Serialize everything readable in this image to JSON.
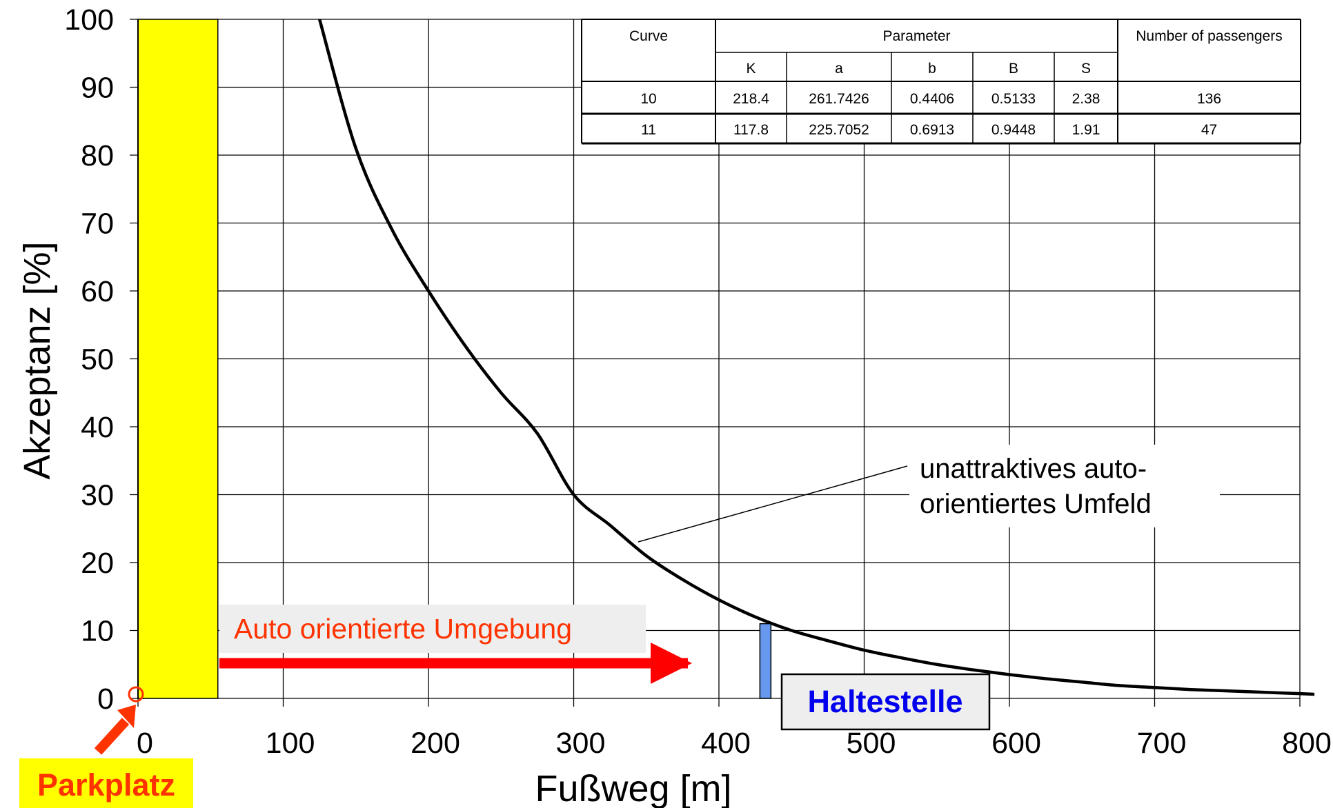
{
  "chart_data": {
    "type": "line",
    "xlabel": "Fußweg [m]",
    "ylabel": "Akzeptanz [%]",
    "xlim": [
      0,
      800
    ],
    "ylim": [
      0,
      100
    ],
    "xticks": [
      0,
      100,
      200,
      300,
      400,
      500,
      600,
      700,
      800
    ],
    "yticks": [
      0,
      10,
      20,
      30,
      40,
      50,
      60,
      70,
      80,
      90,
      100
    ],
    "grid": true,
    "series": [
      {
        "x": [
          125,
          150,
          175,
          200,
          225,
          250,
          275,
          300,
          325,
          350,
          375,
          400,
          425,
          450,
          475,
          500,
          525,
          550,
          575,
          600,
          625,
          650,
          675,
          700,
          725,
          750,
          775,
          800,
          810
        ],
        "y": [
          100,
          81,
          69,
          60,
          52,
          45,
          39,
          30,
          25.5,
          21,
          17.5,
          14.5,
          12,
          10,
          8.5,
          7.1,
          6,
          5,
          4.2,
          3.5,
          2.9,
          2.4,
          1.9,
          1.6,
          1.3,
          1.1,
          0.9,
          0.7,
          0.6
        ],
        "color": "#000000"
      }
    ],
    "parking_zone": {
      "x_from": 0,
      "x_to": 55,
      "color": "#ffff00"
    },
    "bus_stop_marker": {
      "x": 432,
      "y_top": 11,
      "color": "#6699ee"
    },
    "annotations": {
      "environment_label": "Auto orientierte Umgebung",
      "curve_label_line1": "unattraktives auto-",
      "curve_label_line2": "orientiertes Umfeld",
      "stop_label": "Haltestelle",
      "parking_label": "Parkplatz"
    },
    "table": {
      "headers": {
        "curve": "Curve",
        "parameter": "Parameter",
        "passengers": "Number of passengers"
      },
      "param_names": [
        "K",
        "a",
        "b",
        "B",
        "S"
      ],
      "rows": [
        {
          "curve": "10",
          "params": [
            "218.4",
            "261.7426",
            "0.4406",
            "0.5133",
            "2.38"
          ],
          "passengers": "136"
        },
        {
          "curve": "11",
          "params": [
            "117.8",
            "225.7052",
            "0.6913",
            "0.9448",
            "1.91"
          ],
          "passengers": "47"
        }
      ]
    }
  },
  "colors": {
    "arrow": "#ff0000",
    "arrow_label_text": "#ff3300",
    "parking_label_text": "#ff3300",
    "parking_label_bg": "#ffff00",
    "stop_label_text": "#0000ee",
    "label_box_bg": "#eeeeee"
  }
}
